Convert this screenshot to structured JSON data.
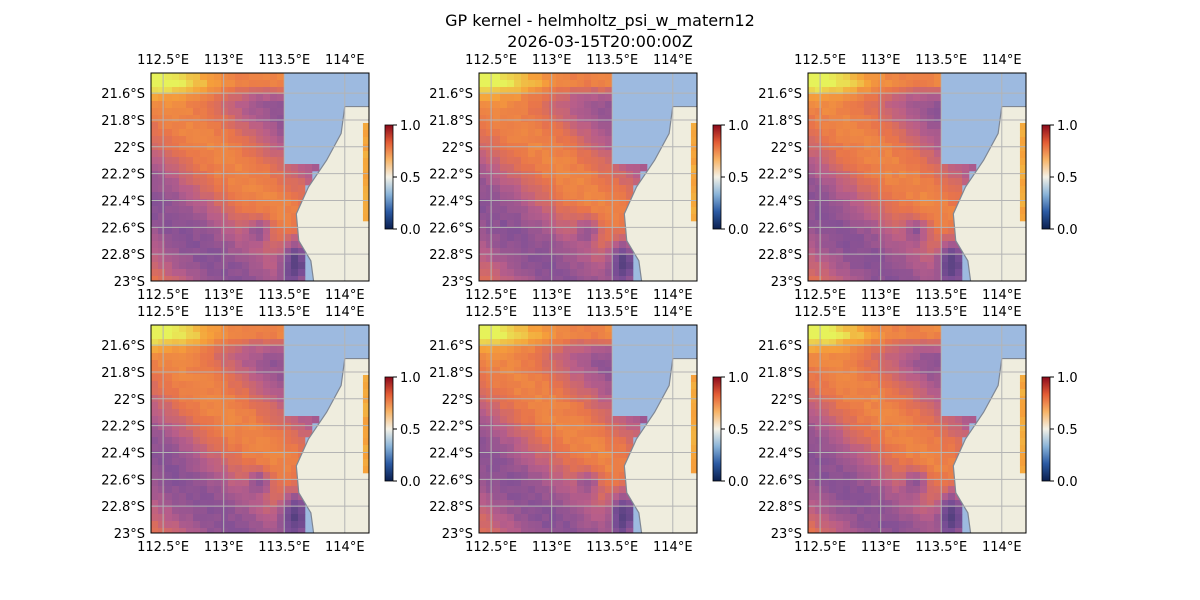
{
  "figure": {
    "title_line1": "GP kernel - helmholtz_psi_w_matern12",
    "title_line2": "2026-03-15T20:00:00Z"
  },
  "colors": {
    "land": "#efedde",
    "water_mask": "#9dbae0",
    "grid": "#b4b4b4",
    "coastline": "#7f8794",
    "colormap": [
      "#0b1f4f",
      "#2b5aa3",
      "#8ab4d9",
      "#f4f1e6",
      "#f7b366",
      "#e35c35",
      "#8b0a1c"
    ],
    "field_colormap": [
      "#0e2a63",
      "#54407f",
      "#7d4f97",
      "#b85e8a",
      "#e8744b",
      "#f6a13a",
      "#e6f25a"
    ]
  },
  "chart_data": [
    {
      "type": "heatmap",
      "panel": "row1-col1",
      "x_tick_labels": [
        "112.5°E",
        "113°E",
        "113.5°E",
        "114°E"
      ],
      "x_ticks": [
        112.5,
        113.0,
        113.5,
        114.0
      ],
      "y_tick_labels": [
        "21.6°S",
        "21.8°S",
        "22°S",
        "22.2°S",
        "22.4°S",
        "22.6°S",
        "22.8°S",
        "23°S"
      ],
      "y_ticks": [
        -21.6,
        -21.8,
        -22.0,
        -22.2,
        -22.4,
        -22.6,
        -22.8,
        -23.0
      ],
      "xlim": [
        112.4,
        114.2
      ],
      "ylim": [
        -23.0,
        -21.45
      ],
      "grid": true,
      "colorbar": {
        "ticks": [
          0.0,
          0.5,
          1.0
        ],
        "tick_labels": [
          "0.0",
          "0.5",
          "1.0"
        ],
        "range": [
          0.0,
          1.0
        ]
      }
    },
    {
      "type": "heatmap",
      "panel": "row1-col2",
      "x_tick_labels": [
        "112.5°E",
        "113°E",
        "113.5°E",
        "114°E"
      ],
      "x_ticks": [
        112.5,
        113.0,
        113.5,
        114.0
      ],
      "y_tick_labels": [
        "21.6°S",
        "21.8°S",
        "22°S",
        "22.2°S",
        "22.4°S",
        "22.6°S",
        "22.8°S",
        "23°S"
      ],
      "y_ticks": [
        -21.6,
        -21.8,
        -22.0,
        -22.2,
        -22.4,
        -22.6,
        -22.8,
        -23.0
      ],
      "xlim": [
        112.4,
        114.2
      ],
      "ylim": [
        -23.0,
        -21.45
      ],
      "grid": true,
      "colorbar": {
        "ticks": [
          0.0,
          0.5,
          1.0
        ],
        "tick_labels": [
          "0.0",
          "0.5",
          "1.0"
        ],
        "range": [
          0.0,
          1.0
        ]
      }
    },
    {
      "type": "heatmap",
      "panel": "row1-col3",
      "x_tick_labels": [
        "112.5°E",
        "113°E",
        "113.5°E",
        "114°E"
      ],
      "x_ticks": [
        112.5,
        113.0,
        113.5,
        114.0
      ],
      "y_tick_labels": [
        "21.6°S",
        "21.8°S",
        "22°S",
        "22.2°S",
        "22.4°S",
        "22.6°S",
        "22.8°S",
        "23°S"
      ],
      "y_ticks": [
        -21.6,
        -21.8,
        -22.0,
        -22.2,
        -22.4,
        -22.6,
        -22.8,
        -23.0
      ],
      "xlim": [
        112.4,
        114.2
      ],
      "ylim": [
        -23.0,
        -21.45
      ],
      "grid": true,
      "colorbar": {
        "ticks": [
          0.0,
          0.5,
          1.0
        ],
        "tick_labels": [
          "0.0",
          "0.5",
          "1.0"
        ],
        "range": [
          0.0,
          1.0
        ]
      }
    },
    {
      "type": "heatmap",
      "panel": "row2-col1",
      "x_tick_labels": [
        "112.5°E",
        "113°E",
        "113.5°E",
        "114°E"
      ],
      "x_ticks": [
        112.5,
        113.0,
        113.5,
        114.0
      ],
      "y_tick_labels": [
        "21.6°S",
        "21.8°S",
        "22°S",
        "22.2°S",
        "22.4°S",
        "22.6°S",
        "22.8°S",
        "23°S"
      ],
      "y_ticks": [
        -21.6,
        -21.8,
        -22.0,
        -22.2,
        -22.4,
        -22.6,
        -22.8,
        -23.0
      ],
      "xlim": [
        112.4,
        114.2
      ],
      "ylim": [
        -23.0,
        -21.45
      ],
      "grid": true,
      "colorbar": {
        "ticks": [
          0.0,
          0.5,
          1.0
        ],
        "tick_labels": [
          "0.0",
          "0.5",
          "1.0"
        ],
        "range": [
          0.0,
          1.0
        ]
      }
    },
    {
      "type": "heatmap",
      "panel": "row2-col2",
      "x_tick_labels": [
        "112.5°E",
        "113°E",
        "113.5°E",
        "114°E"
      ],
      "x_ticks": [
        112.5,
        113.0,
        113.5,
        114.0
      ],
      "y_tick_labels": [
        "21.6°S",
        "21.8°S",
        "22°S",
        "22.2°S",
        "22.4°S",
        "22.6°S",
        "22.8°S",
        "23°S"
      ],
      "y_ticks": [
        -21.6,
        -21.8,
        -22.0,
        -22.2,
        -22.4,
        -22.6,
        -22.8,
        -23.0
      ],
      "xlim": [
        112.4,
        114.2
      ],
      "ylim": [
        -23.0,
        -21.45
      ],
      "grid": true,
      "colorbar": {
        "ticks": [
          0.0,
          0.5,
          1.0
        ],
        "tick_labels": [
          "0.0",
          "0.5",
          "1.0"
        ],
        "range": [
          0.0,
          1.0
        ]
      }
    },
    {
      "type": "heatmap",
      "panel": "row2-col3",
      "x_tick_labels": [
        "112.5°E",
        "113°E",
        "113.5°E",
        "114°E"
      ],
      "x_ticks": [
        112.5,
        113.0,
        113.5,
        114.0
      ],
      "y_tick_labels": [
        "21.6°S",
        "21.8°S",
        "22°S",
        "22.2°S",
        "22.4°S",
        "22.6°S",
        "22.8°S",
        "23°S"
      ],
      "y_ticks": [
        -21.6,
        -21.8,
        -22.0,
        -22.2,
        -22.4,
        -22.6,
        -22.8,
        -23.0
      ],
      "xlim": [
        112.4,
        114.2
      ],
      "ylim": [
        -23.0,
        -21.45
      ],
      "grid": true,
      "colorbar": {
        "ticks": [
          0.0,
          0.5,
          1.0
        ],
        "tick_labels": [
          "0.0",
          "0.5",
          "1.0"
        ],
        "range": [
          0.0,
          1.0
        ]
      }
    }
  ]
}
